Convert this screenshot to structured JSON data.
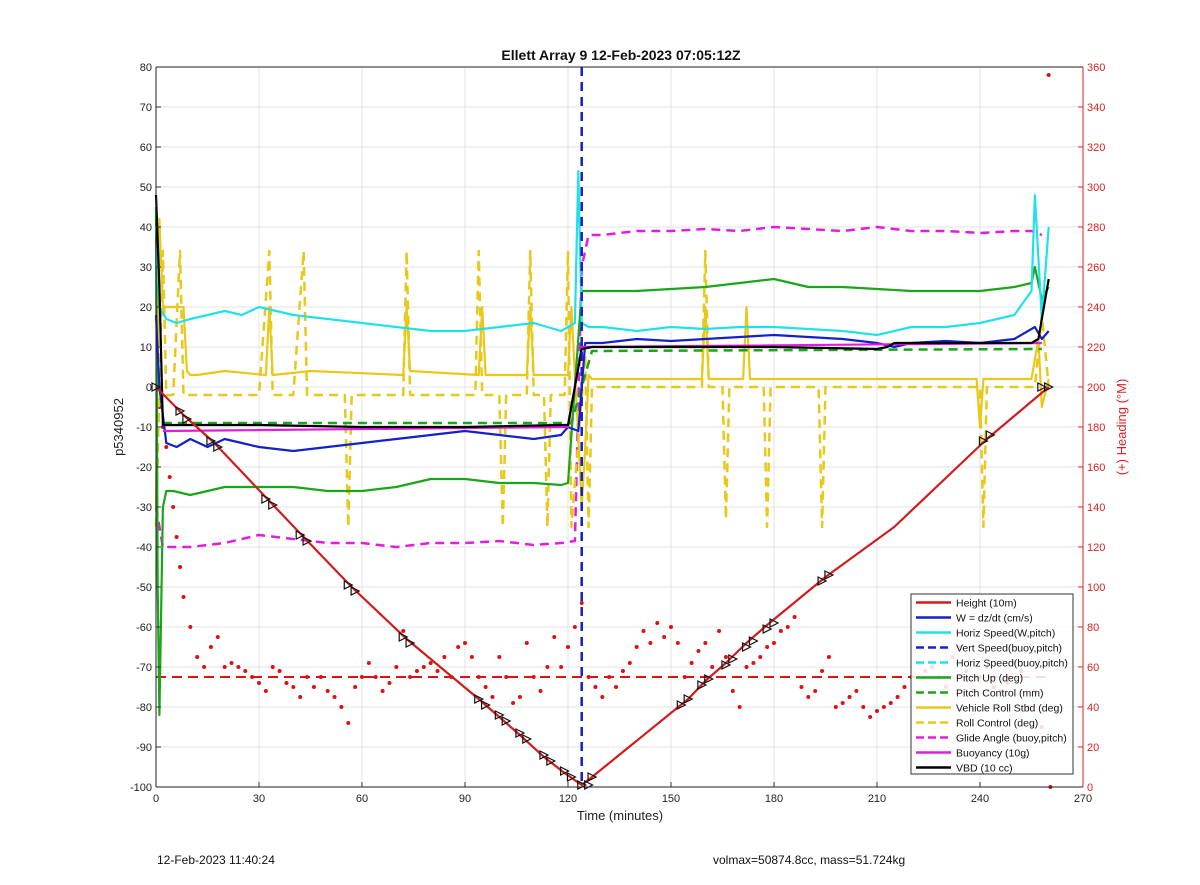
{
  "chart_data": {
    "type": "line",
    "title": "Ellett Array 9 12-Feb-2023 07:05:12Z",
    "xlabel": "Time (minutes)",
    "ylabel": "p5340952",
    "ylabel_right": "(+) Heading (°M)",
    "xlim": [
      0,
      270
    ],
    "ylim": [
      -100,
      80
    ],
    "ylim_right": [
      0,
      360
    ],
    "x_ticks": [
      "0",
      "30",
      "60",
      "90",
      "120",
      "150",
      "180",
      "210",
      "240",
      "270"
    ],
    "y_ticks": [
      "-100",
      "-90",
      "-80",
      "-70",
      "-60",
      "-50",
      "-40",
      "-30",
      "-20",
      "-10",
      "0",
      "10",
      "20",
      "30",
      "40",
      "50",
      "60",
      "70",
      "80"
    ],
    "y_right_ticks": [
      "0",
      "20",
      "40",
      "60",
      "80",
      "100",
      "120",
      "140",
      "160",
      "180",
      "200",
      "220",
      "240",
      "260",
      "280",
      "300",
      "320",
      "340",
      "360"
    ],
    "grid": true,
    "legend_position": "bottom-right",
    "series": [
      {
        "name": "Height (10m)",
        "color": "#d01c1c",
        "style": "solid",
        "x": [
          0,
          8,
          17,
          33,
          43,
          57,
          73,
          94,
          100,
          106,
          113,
          119,
          124,
          127,
          155,
          160,
          166,
          172,
          178,
          195,
          215,
          242,
          260
        ],
        "y": [
          0,
          -7,
          -14,
          -28.5,
          -37.5,
          -50,
          -63,
          -78,
          -82.5,
          -87,
          -92.5,
          -96.5,
          -99.5,
          -97.5,
          -78,
          -73.5,
          -69,
          -64,
          -59.5,
          -47.5,
          -35,
          -13,
          0
        ]
      },
      {
        "name": "W = dz/dt (cm/s)",
        "color": "#1420c8",
        "style": "solid",
        "x": [
          0,
          1,
          3,
          6,
          10,
          15,
          20,
          25,
          30,
          40,
          50,
          60,
          70,
          80,
          90,
          100,
          110,
          118,
          120,
          123,
          125,
          130,
          140,
          150,
          160,
          170,
          180,
          190,
          200,
          210,
          215,
          220,
          230,
          240,
          250,
          256,
          258,
          260
        ],
        "y": [
          18,
          0,
          -14,
          -15,
          -13,
          -15,
          -13,
          -14,
          -15,
          -16,
          -15,
          -14,
          -13,
          -12,
          -11,
          -12,
          -13,
          -12,
          -10,
          -11,
          11,
          11,
          12,
          11.5,
          12,
          12.5,
          13,
          12.5,
          12,
          11,
          10,
          11,
          11.5,
          11,
          12,
          15,
          12,
          14
        ]
      },
      {
        "name": "Horiz Speed(W,pitch)",
        "color": "#22e0e8",
        "style": "solid",
        "x": [
          0,
          1,
          3,
          6,
          10,
          15,
          20,
          25,
          30,
          35,
          40,
          50,
          60,
          70,
          80,
          90,
          100,
          110,
          118,
          122,
          123,
          124,
          126,
          130,
          140,
          150,
          160,
          170,
          180,
          190,
          200,
          210,
          220,
          230,
          240,
          250,
          255,
          256,
          258,
          260
        ],
        "y": [
          40,
          20,
          17,
          16,
          17,
          18,
          19,
          18,
          20,
          19,
          18,
          17,
          16,
          15,
          14,
          14,
          15,
          16,
          14,
          16,
          54,
          16,
          15,
          15,
          14,
          15,
          14.5,
          15,
          15,
          14.5,
          14,
          13,
          15,
          15,
          16,
          18,
          24,
          48,
          17,
          40
        ]
      },
      {
        "name": "Vert Speed(buoy,pitch)",
        "color": "#1420c8",
        "style": "dashed",
        "x": [
          124,
          124
        ],
        "y": [
          80,
          -100
        ]
      },
      {
        "name": "Horiz Speed(buoy,pitch)",
        "color": "#22e0e8",
        "style": "dashed",
        "x": [],
        "y": []
      },
      {
        "name": "Pitch Up (deg)",
        "color": "#1aa51a",
        "style": "solid",
        "x": [
          0,
          0.5,
          1,
          2,
          3,
          5,
          10,
          20,
          30,
          40,
          50,
          60,
          70,
          80,
          90,
          100,
          110,
          118,
          120,
          124,
          126,
          130,
          140,
          150,
          160,
          170,
          180,
          190,
          200,
          210,
          220,
          230,
          240,
          250,
          255,
          256,
          258,
          260
        ],
        "y": [
          45,
          -50,
          -82,
          -30,
          -26,
          -26,
          -27,
          -25,
          -25,
          -25,
          -26,
          -26,
          -25,
          -23,
          -23,
          -24,
          -24,
          -24.5,
          -24,
          24,
          24,
          24,
          24,
          24.5,
          25,
          26,
          27,
          25,
          25,
          24.5,
          24,
          24,
          24,
          25,
          26,
          30,
          22,
          25
        ]
      },
      {
        "name": "Pitch Control (mm)",
        "color": "#1aa51a",
        "style": "dashed",
        "x": [
          2,
          121,
          127,
          258
        ],
        "y": [
          -9,
          -9,
          9,
          9.5
        ]
      },
      {
        "name": "Vehicle Roll Stbd (deg)",
        "color": "#e8c81a",
        "style": "solid",
        "x": [
          0,
          1,
          2,
          3,
          5,
          8,
          9,
          10,
          12,
          20,
          32,
          33,
          34,
          45,
          72,
          73,
          74,
          94,
          95,
          96,
          108,
          109,
          110,
          120,
          121,
          122,
          123,
          124,
          125,
          126,
          127,
          130,
          145,
          159,
          160,
          161,
          171,
          172,
          173,
          200,
          239,
          240,
          241,
          255,
          257,
          258,
          260
        ],
        "y": [
          -30,
          42,
          20,
          20,
          20,
          20,
          4,
          3,
          3,
          4,
          3,
          20,
          3,
          4,
          3,
          20,
          4,
          3,
          20,
          3,
          3,
          20,
          3,
          3,
          20,
          3,
          -12,
          -30,
          -15,
          3,
          2,
          2,
          2,
          2,
          20,
          2,
          2,
          20,
          2,
          2,
          2,
          -10,
          2,
          2,
          12,
          -5,
          2
        ]
      },
      {
        "name": "Roll Control (deg)",
        "color": "#e8c81a",
        "style": "dashed",
        "x": [
          0,
          2,
          3,
          5,
          7,
          8,
          17,
          20,
          30,
          33,
          34,
          40,
          43,
          44,
          50,
          55,
          56,
          57,
          60,
          72,
          73,
          74,
          85,
          93,
          94,
          95,
          100,
          101,
          102,
          108,
          109,
          110,
          113,
          114,
          115,
          119,
          120,
          121,
          125,
          126,
          127,
          140,
          155,
          159,
          160,
          161,
          165,
          166,
          167,
          177,
          178,
          179,
          193,
          194,
          195,
          220,
          240,
          241,
          242,
          256,
          258,
          260
        ],
        "y": [
          -35,
          34,
          -2,
          -2,
          34,
          -2,
          -2,
          -2,
          -2,
          34,
          -2,
          -2,
          34,
          -2,
          -2,
          -2,
          -35,
          -2,
          -2,
          -2,
          34,
          -2,
          -2,
          -2,
          34,
          -2,
          -2,
          -35,
          -2,
          -2,
          34,
          -2,
          -2,
          -35,
          -2,
          -2,
          34,
          -35,
          8,
          -35,
          0,
          0,
          0,
          0,
          34,
          0,
          0,
          -33,
          0,
          0,
          -35,
          0,
          0,
          -35,
          0,
          0,
          0,
          -35,
          0,
          0,
          18,
          0
        ]
      },
      {
        "name": "Glide Angle (buoy,pitch)",
        "color": "#e01ee0",
        "style": "dashed",
        "x": [
          0,
          2,
          5,
          10,
          20,
          30,
          40,
          50,
          60,
          70,
          80,
          90,
          100,
          110,
          118,
          122,
          124,
          126,
          130,
          140,
          150,
          160,
          170,
          180,
          190,
          200,
          210,
          220,
          230,
          240,
          250,
          255,
          258
        ],
        "y": [
          -30,
          -40,
          -40,
          -40,
          -39,
          -37,
          -38,
          -39,
          -39,
          -40,
          -39,
          -39,
          -38.5,
          -39.5,
          -39,
          -38.5,
          30,
          38,
          38,
          39,
          39,
          39.5,
          39,
          40,
          39.5,
          39,
          40,
          39,
          39,
          38.5,
          39,
          39,
          38
        ]
      },
      {
        "name": "Buoyancy (10g)",
        "color": "#e01ee0",
        "style": "solid",
        "x": [
          2,
          120,
          124,
          258
        ],
        "y": [
          -11,
          -10,
          10,
          11
        ]
      },
      {
        "name": "VBD (10 cc)",
        "color": "#000000",
        "style": "solid",
        "x": [
          0,
          1,
          2,
          5,
          30,
          60,
          90,
          118,
          120,
          124,
          127,
          150,
          180,
          210,
          213,
          215,
          255,
          257,
          260
        ],
        "y": [
          48,
          25,
          -9.5,
          -9.5,
          -9.5,
          -10,
          -10,
          -9.5,
          -9.5,
          9.5,
          10,
          10,
          10,
          9.5,
          10,
          11,
          11,
          12,
          27
        ]
      }
    ],
    "heading_series": {
      "name": "Heading (deg, right axis)",
      "color": "#e01010",
      "mean": 55,
      "x": [
        260,
        260.5,
        0.5,
        1,
        2,
        3,
        4,
        5,
        6,
        7,
        8,
        10,
        12,
        14,
        16,
        18,
        20,
        22,
        24,
        26,
        28,
        30,
        32,
        34,
        36,
        38,
        40,
        42,
        44,
        46,
        48,
        50,
        52,
        54,
        56,
        58,
        60,
        62,
        64,
        66,
        68,
        70,
        72,
        74,
        76,
        78,
        80,
        82,
        84,
        86,
        88,
        90,
        92,
        94,
        96,
        98,
        100,
        102,
        104,
        106,
        108,
        110,
        112,
        114,
        116,
        118,
        120,
        122,
        124,
        126,
        128,
        130,
        132,
        134,
        136,
        138,
        140,
        142,
        144,
        146,
        148,
        150,
        152,
        154,
        156,
        158,
        160,
        162,
        164,
        166,
        168,
        170,
        172,
        174,
        176,
        178,
        180,
        182,
        184,
        186,
        188,
        190,
        192,
        194,
        196,
        198,
        200,
        202,
        204,
        206,
        208,
        210,
        212,
        214,
        216,
        218,
        220,
        222,
        224,
        226,
        228,
        230,
        232,
        234,
        236,
        238,
        240,
        242,
        244,
        246,
        248,
        250,
        252,
        254,
        256,
        258
      ],
      "y": [
        356,
        0,
        200,
        190,
        180,
        170,
        155,
        140,
        125,
        110,
        95,
        80,
        65,
        60,
        70,
        75,
        60,
        62,
        60,
        58,
        55,
        52,
        48,
        60,
        58,
        52,
        50,
        45,
        55,
        50,
        55,
        48,
        45,
        40,
        32,
        50,
        55,
        62,
        55,
        48,
        52,
        60,
        78,
        55,
        58,
        60,
        62,
        58,
        65,
        55,
        70,
        72,
        65,
        55,
        50,
        45,
        65,
        55,
        42,
        45,
        72,
        55,
        48,
        60,
        75,
        60,
        70,
        80,
        92,
        55,
        50,
        45,
        55,
        50,
        58,
        62,
        70,
        78,
        72,
        82,
        75,
        80,
        72,
        55,
        62,
        68,
        72,
        60,
        78,
        65,
        48,
        40,
        60,
        62,
        65,
        70,
        72,
        78,
        80,
        85,
        50,
        45,
        48,
        58,
        65,
        40,
        42,
        45,
        48,
        40,
        35,
        38,
        40,
        42,
        45,
        50,
        55,
        62,
        58,
        60,
        55,
        50,
        65,
        70,
        58,
        48,
        55,
        60,
        50,
        48,
        52,
        62,
        58,
        40,
        48,
        30
      ]
    },
    "height_markers": {
      "x": [
        0,
        7,
        9,
        16,
        18,
        32,
        34,
        42,
        44,
        56,
        58,
        72,
        74,
        94,
        96,
        100,
        102,
        106,
        108,
        113,
        115,
        119,
        121,
        124,
        126,
        127,
        153,
        155,
        159,
        161,
        166,
        168,
        172,
        174,
        178,
        180,
        194,
        196,
        241,
        243,
        258,
        260
      ],
      "y": [
        0,
        -6,
        -8,
        -13.5,
        -15,
        -28,
        -29.5,
        -37,
        -38.5,
        -49.5,
        -51,
        -62.5,
        -64,
        -78,
        -79.5,
        -82,
        -83.5,
        -86.5,
        -88,
        -92,
        -93.5,
        -96,
        -97.5,
        -99.5,
        -99.5,
        -97.5,
        -79.5,
        -78,
        -74.5,
        -73,
        -69.5,
        -68,
        -65,
        -63.5,
        -60.5,
        -59,
        -48.5,
        -47,
        -13.5,
        -12,
        0,
        0
      ]
    }
  },
  "footer": {
    "left": "12-Feb-2023 11:40:24",
    "right": "volmax=50874.8cc, mass=51.724kg"
  }
}
